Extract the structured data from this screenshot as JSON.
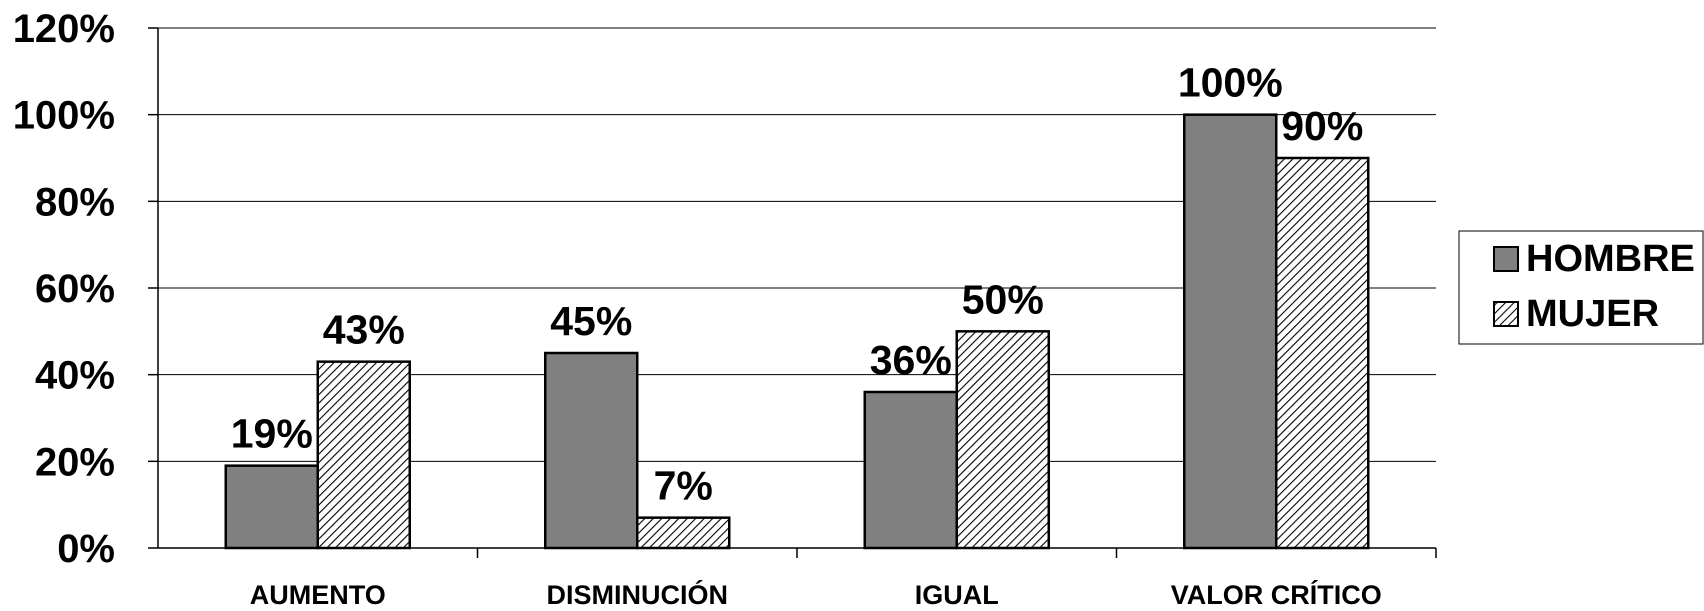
{
  "chart_data": {
    "type": "bar",
    "title": "",
    "xlabel": "",
    "ylabel": "",
    "categories": [
      "AUMENTO",
      "DISMINUCIÓN",
      "IGUAL",
      "VALOR CRÍTICO"
    ],
    "series": [
      {
        "name": "HOMBRE",
        "values": [
          19,
          45,
          36,
          100
        ],
        "labels": [
          "19%",
          "45%",
          "36%",
          "100%"
        ],
        "color": "#808080",
        "pattern": "solid"
      },
      {
        "name": "MUJER",
        "values": [
          43,
          7,
          50,
          90
        ],
        "labels": [
          "43%",
          "7%",
          "50%",
          "90%"
        ],
        "color": "#ffffff",
        "pattern": "diagonal-hatch"
      }
    ],
    "ylim": [
      0,
      120
    ],
    "yticks": [
      0,
      20,
      40,
      60,
      80,
      100,
      120
    ],
    "ytick_labels": [
      "0%",
      "20%",
      "40%",
      "60%",
      "80%",
      "100%",
      "120%"
    ],
    "grid": true,
    "legend_position": "right"
  }
}
